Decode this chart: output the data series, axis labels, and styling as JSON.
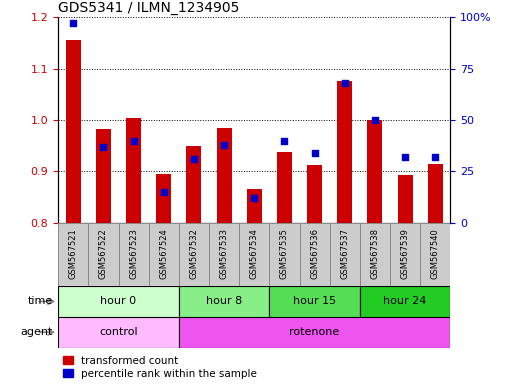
{
  "title": "GDS5341 / ILMN_1234905",
  "samples": [
    "GSM567521",
    "GSM567522",
    "GSM567523",
    "GSM567524",
    "GSM567532",
    "GSM567533",
    "GSM567534",
    "GSM567535",
    "GSM567536",
    "GSM567537",
    "GSM567538",
    "GSM567539",
    "GSM567540"
  ],
  "transformed_counts": [
    1.155,
    0.983,
    1.003,
    0.895,
    0.95,
    0.985,
    0.865,
    0.937,
    0.912,
    1.075,
    1.0,
    0.893,
    0.915
  ],
  "percentile_ranks": [
    97,
    37,
    40,
    15,
    31,
    38,
    12,
    40,
    34,
    68,
    50,
    32,
    32
  ],
  "ylim_left": [
    0.8,
    1.2
  ],
  "ylim_right": [
    0,
    100
  ],
  "yticks_left": [
    0.8,
    0.9,
    1.0,
    1.1,
    1.2
  ],
  "yticks_right": [
    0,
    25,
    50,
    75,
    100
  ],
  "ytick_labels_right": [
    "0",
    "25",
    "50",
    "75",
    "100%"
  ],
  "bar_color": "#cc0000",
  "dot_color": "#0000cc",
  "bar_bottom": 0.8,
  "time_groups": [
    {
      "label": "hour 0",
      "start": 0,
      "end": 4,
      "color": "#ccffcc"
    },
    {
      "label": "hour 8",
      "start": 4,
      "end": 7,
      "color": "#88ee88"
    },
    {
      "label": "hour 15",
      "start": 7,
      "end": 10,
      "color": "#55dd55"
    },
    {
      "label": "hour 24",
      "start": 10,
      "end": 13,
      "color": "#22cc22"
    }
  ],
  "agent_groups": [
    {
      "label": "control",
      "start": 0,
      "end": 4,
      "color": "#ffbbff"
    },
    {
      "label": "rotenone",
      "start": 4,
      "end": 13,
      "color": "#ee55ee"
    }
  ],
  "legend_red_label": "transformed count",
  "legend_blue_label": "percentile rank within the sample",
  "time_label": "time",
  "agent_label": "agent",
  "tick_label_color_left": "#cc0000",
  "tick_label_color_right": "#0000cc",
  "grid_color": "#000000",
  "bg_color": "#ffffff",
  "label_bg_color": "#cccccc",
  "label_border_color": "#888888"
}
